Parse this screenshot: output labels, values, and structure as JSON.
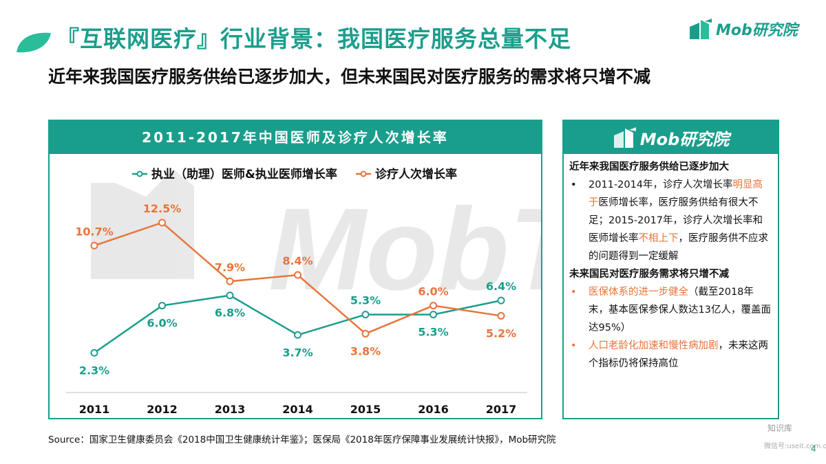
{
  "page": {
    "title": "『互联网医疗』行业背景：我国医疗服务总量不足",
    "subtitle": "近年来我国医疗服务供给已逐步加大，但未来国民对医疗服务的需求将只增不减",
    "brand": "Mob研究院",
    "source": "Source：国家卫生健康委员会《2018中国卫生健康统计年鉴》；医保局《2018年医疗保障事业发展统计快报》，Mob研究院",
    "page_number": "4",
    "watermark_text": "MobTech",
    "corner_watermark_1": "知识库",
    "corner_watermark_2": "微信号:useit.com.cn"
  },
  "chart_data": {
    "type": "line",
    "title": "2011-2017年中国医师及诊疗人次增长率",
    "categories": [
      "2011",
      "2012",
      "2013",
      "2014",
      "2015",
      "2016",
      "2017"
    ],
    "series": [
      {
        "name": "执业（助理）医师&执业医师增长率",
        "color": "#1a9e8c",
        "values": [
          2.3,
          6.0,
          6.8,
          3.7,
          5.3,
          5.3,
          6.4
        ],
        "labels": [
          "2.3%",
          "6.0%",
          "6.8%",
          "3.7%",
          "5.3%",
          "5.3%",
          "6.4%"
        ],
        "label_pos": [
          "below",
          "below",
          "below",
          "below",
          "above",
          "below",
          "above"
        ]
      },
      {
        "name": "诊疗人次增长率",
        "color": "#e8743b",
        "values": [
          10.7,
          12.5,
          7.9,
          8.4,
          3.8,
          6.0,
          5.2
        ],
        "labels": [
          "10.7%",
          "12.5%",
          "7.9%",
          "8.4%",
          "3.8%",
          "6.0%",
          "5.2%"
        ],
        "label_pos": [
          "above",
          "above",
          "above",
          "above",
          "below",
          "above",
          "below"
        ]
      }
    ],
    "ylim": [
      0,
      14
    ],
    "xlabel": "",
    "ylabel": "",
    "grid": false,
    "legend": "top"
  },
  "panel": {
    "brand": "Mob研究院",
    "section1_title": "近年来我国医疗服务供给已逐步加大",
    "s1_b1_t1": "2011-2014年，诊疗人次增长率",
    "s1_b1_h1": "明显高于",
    "s1_b1_t2": "医师增长率，医疗服务供给有很大不足；2015-2017年，诊疗人次增长率和医师增长率",
    "s1_b1_h2": "不相上下",
    "s1_b1_t3": "，医疗服务供不应求的问题得到一定缓解",
    "section2_title": "未来国民对医疗服务需求将只增不减",
    "s2_b1_h": "医保体系的进一步健全",
    "s2_b1_t": "（截至2018年末，基本医保参保人数达13亿人，覆盖面达95%）",
    "s2_b2_h": "人口老龄化加速和慢性病加剧",
    "s2_b2_t": "，未来这两个指标仍将保持高位",
    "bullet_dot": "•"
  }
}
